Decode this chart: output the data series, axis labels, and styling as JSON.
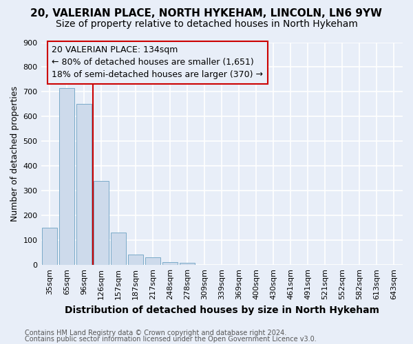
{
  "title1": "20, VALERIAN PLACE, NORTH HYKEHAM, LINCOLN, LN6 9YW",
  "title2": "Size of property relative to detached houses in North Hykeham",
  "xlabel": "Distribution of detached houses by size in North Hykeham",
  "ylabel": "Number of detached properties",
  "footnote1": "Contains HM Land Registry data © Crown copyright and database right 2024.",
  "footnote2": "Contains public sector information licensed under the Open Government Licence v3.0.",
  "categories": [
    "35sqm",
    "65sqm",
    "96sqm",
    "126sqm",
    "157sqm",
    "187sqm",
    "217sqm",
    "248sqm",
    "278sqm",
    "309sqm",
    "339sqm",
    "369sqm",
    "400sqm",
    "430sqm",
    "461sqm",
    "491sqm",
    "521sqm",
    "552sqm",
    "582sqm",
    "613sqm",
    "643sqm"
  ],
  "values": [
    150,
    715,
    650,
    340,
    130,
    42,
    30,
    12,
    8,
    0,
    0,
    0,
    0,
    0,
    0,
    0,
    0,
    0,
    0,
    0,
    0
  ],
  "bar_color": "#cddaeb",
  "bar_edge_color": "#7aaac8",
  "bg_color": "#e8eef8",
  "grid_color": "#ffffff",
  "annotation_box_text1": "20 VALERIAN PLACE: 134sqm",
  "annotation_box_text2": "← 80% of detached houses are smaller (1,651)",
  "annotation_box_text3": "18% of semi-detached houses are larger (370) →",
  "vline_color": "#cc0000",
  "annotation_box_color": "#cc0000",
  "ylim": [
    0,
    900
  ],
  "yticks": [
    0,
    100,
    200,
    300,
    400,
    500,
    600,
    700,
    800,
    900
  ],
  "title1_fontsize": 11,
  "title2_fontsize": 10,
  "xlabel_fontsize": 10,
  "ylabel_fontsize": 9,
  "tick_fontsize": 8,
  "annot_fontsize": 9,
  "footnote_fontsize": 7
}
